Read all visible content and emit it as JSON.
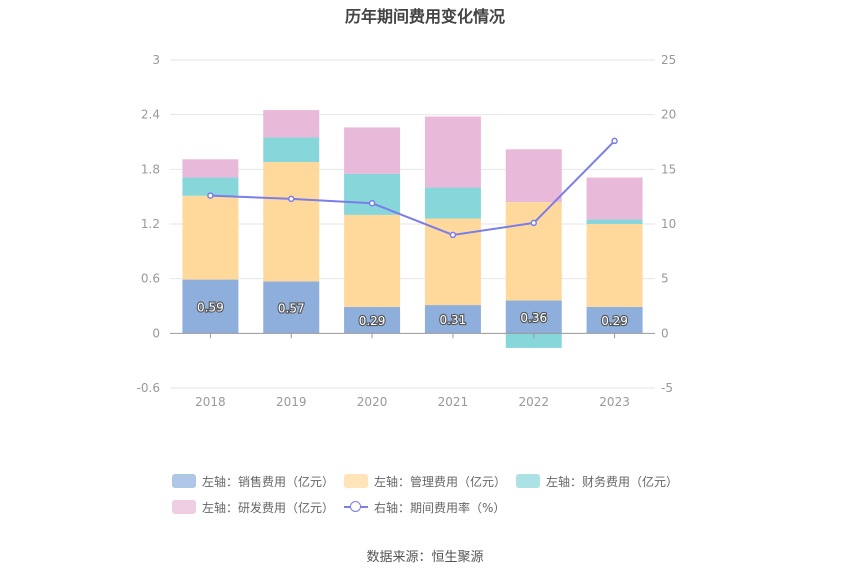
{
  "chart_data": {
    "type": "bar",
    "title": "历年期间费用变化情况",
    "categories": [
      "2018",
      "2019",
      "2020",
      "2021",
      "2022",
      "2023"
    ],
    "left_axis": {
      "ticks": [
        "-0.6",
        "0",
        "0.6",
        "1.2",
        "1.8",
        "2.4",
        "3"
      ],
      "ylim": [
        -0.6,
        3
      ]
    },
    "right_axis": {
      "ticks": [
        "-5",
        "0",
        "5",
        "10",
        "15",
        "20",
        "25"
      ],
      "ylim": [
        -5,
        25
      ]
    },
    "stacked": true,
    "series": [
      {
        "name": "左轴：销售费用（亿元）",
        "type": "bar",
        "axis": "left",
        "color": "#8eaedc",
        "values": [
          0.59,
          0.57,
          0.29,
          0.31,
          0.36,
          0.29
        ],
        "data_labels": [
          "0.59",
          "0.57",
          "0.29",
          "0.31",
          "0.36",
          "0.29"
        ]
      },
      {
        "name": "左轴：管理费用（亿元）",
        "type": "bar",
        "axis": "left",
        "color": "#ffd99b",
        "values": [
          0.92,
          1.31,
          1.01,
          0.95,
          1.08,
          0.91
        ]
      },
      {
        "name": "左轴：财务费用（亿元）",
        "type": "bar",
        "axis": "left",
        "color": "#87d6da",
        "values": [
          0.2,
          0.27,
          0.45,
          0.34,
          -0.16,
          0.05
        ]
      },
      {
        "name": "左轴：研发费用（亿元）",
        "type": "bar",
        "axis": "left",
        "color": "#e8b9d9",
        "values": [
          0.2,
          0.3,
          0.51,
          0.78,
          0.58,
          0.46
        ]
      },
      {
        "name": "右轴：期间费用率（%）",
        "type": "line",
        "axis": "right",
        "color": "#7b7de8",
        "values": [
          12.6,
          12.3,
          11.9,
          9.0,
          10.1,
          17.6
        ]
      }
    ],
    "grid": true,
    "legend_position": "bottom"
  },
  "source_text": "数据来源：恒生聚源"
}
